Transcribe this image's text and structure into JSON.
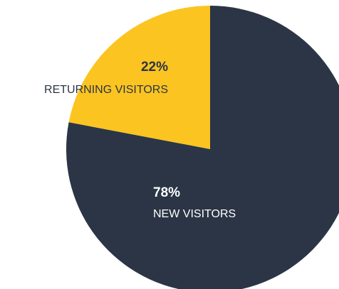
{
  "chart_data": {
    "type": "pie",
    "categories": [
      "NEW VISITORS",
      "RETURNING VISITORS"
    ],
    "values": [
      78,
      22
    ],
    "value_labels": [
      "78%",
      "22%"
    ],
    "colors": [
      "#2b3545",
      "#fbc421"
    ],
    "label_colors": [
      "#ffffff",
      "#2b3545"
    ]
  }
}
